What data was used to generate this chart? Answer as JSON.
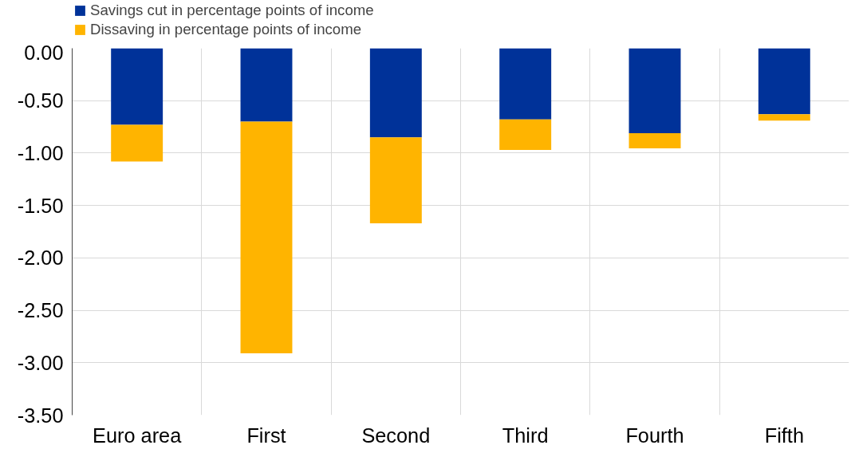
{
  "chart_data": {
    "type": "bar",
    "stacked": true,
    "categories": [
      "Euro area",
      "First",
      "Second",
      "Third",
      "Fourth",
      "Fifth"
    ],
    "series": [
      {
        "name": "Savings cut in percentage points of income",
        "color": "#003299",
        "values": [
          -0.73,
          -0.7,
          -0.85,
          -0.68,
          -0.81,
          -0.63
        ]
      },
      {
        "name": "Dissaving in percentage points of income",
        "color": "#ffb400",
        "values": [
          -0.35,
          -2.21,
          -0.82,
          -0.29,
          -0.145,
          -0.06
        ]
      }
    ],
    "ylim": [
      -3.5,
      0
    ],
    "yticks": [
      {
        "value": 0,
        "label": "0.00"
      },
      {
        "value": -0.5,
        "label": "-0.50"
      },
      {
        "value": -1,
        "label": "-1.00"
      },
      {
        "value": -1.5,
        "label": "-1.50"
      },
      {
        "value": -2,
        "label": "-2.00"
      },
      {
        "value": -2.5,
        "label": "-2.50"
      },
      {
        "value": -3,
        "label": "-3.00"
      },
      {
        "value": -3.5,
        "label": "-3.50"
      }
    ],
    "grid": true,
    "legend": "top left"
  }
}
